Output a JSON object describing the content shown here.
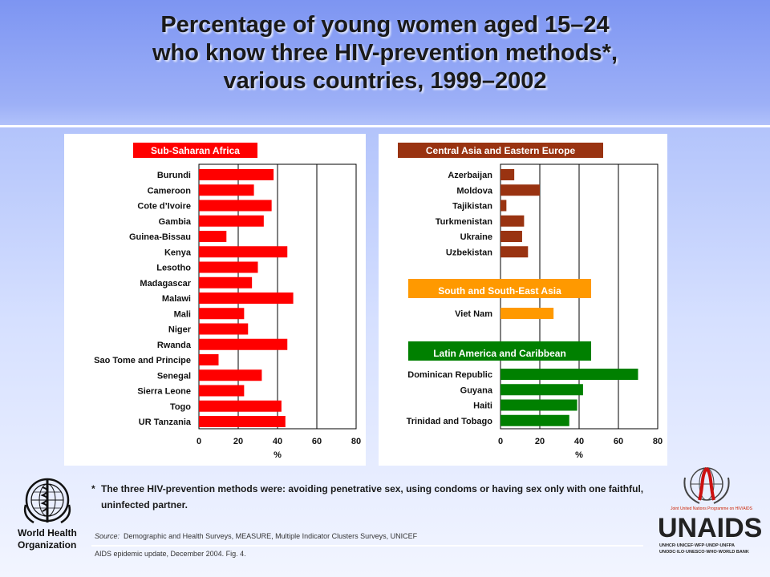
{
  "title": {
    "line1": "Percentage of young women aged 15–24",
    "line2": "who know three HIV-prevention methods*,",
    "line3": "various countries, 1999–2002"
  },
  "chart_data": [
    {
      "type": "bar",
      "orientation": "horizontal",
      "groups": [
        {
          "name": "Sub-Saharan Africa",
          "color": "#ff0000",
          "label_bg": "#ff0000",
          "categories": [
            "Burundi",
            "Cameroon",
            "Cote d’Ivoire",
            "Gambia",
            "Guinea-Bissau",
            "Kenya",
            "Lesotho",
            "Madagascar",
            "Malawi",
            "Mali",
            "Niger",
            "Rwanda",
            "Sao Tome and Principe",
            "Senegal",
            "Sierra Leone",
            "Togo",
            "UR Tanzania"
          ],
          "values": [
            38,
            28,
            37,
            33,
            14,
            45,
            30,
            27,
            48,
            23,
            25,
            45,
            10,
            32,
            23,
            42,
            44
          ]
        }
      ],
      "xlabel": "%",
      "xlim": [
        0,
        80
      ],
      "xticks": [
        "0",
        "20",
        "40",
        "60",
        "80"
      ]
    },
    {
      "type": "bar",
      "orientation": "horizontal",
      "groups": [
        {
          "name": "Central Asia and Eastern Europe",
          "color": "#993311",
          "label_bg": "#993311",
          "categories": [
            "Azerbaijan",
            "Moldova",
            "Tajikistan",
            "Turkmenistan",
            "Ukraine",
            "Uzbekistan"
          ],
          "values": [
            7,
            20,
            3,
            12,
            11,
            14
          ]
        },
        {
          "name": "South and South-East Asia",
          "color": "#ff9900",
          "label_bg": "#ff9900",
          "categories": [
            "Viet Nam"
          ],
          "values": [
            27
          ]
        },
        {
          "name": "Latin America and Caribbean",
          "color": "#008000",
          "label_bg": "#008000",
          "categories": [
            "Dominican Republic",
            "Guyana",
            "Haiti",
            "Trinidad and Tobago"
          ],
          "values": [
            70,
            42,
            39,
            35
          ]
        }
      ],
      "xlabel": "%",
      "xlim": [
        0,
        80
      ],
      "xticks": [
        "0",
        "20",
        "40",
        "60",
        "80"
      ]
    }
  ],
  "footnote": {
    "marker": "*",
    "text": "The three HIV-prevention methods were: avoiding penetrative sex, using condoms or having sex only with one faithful, uninfected partner."
  },
  "source": {
    "label": "Source:",
    "text": "Demographic and Health Surveys, MEASURE, Multiple Indicator Clusters Surveys, UNICEF"
  },
  "citation": "AIDS epidemic update, December 2004.  Fig. 4.",
  "logos": {
    "who_line1": "World Health",
    "who_line2": "Organization",
    "unaids_tagline": "Joint United Nations Programme on HIV/AIDS",
    "unaids_name": "UNAIDS",
    "unaids_sponsors_line1": "UNHCR·UNICEF·WFP·UNDP·UNFPA",
    "unaids_sponsors_line2": "UNODC·ILO·UNESCO·WHO·WORLD BANK"
  },
  "colors": {
    "background_top": "#7d95f2",
    "background_bottom": "#f2f5ff",
    "gridline": "#000000"
  }
}
